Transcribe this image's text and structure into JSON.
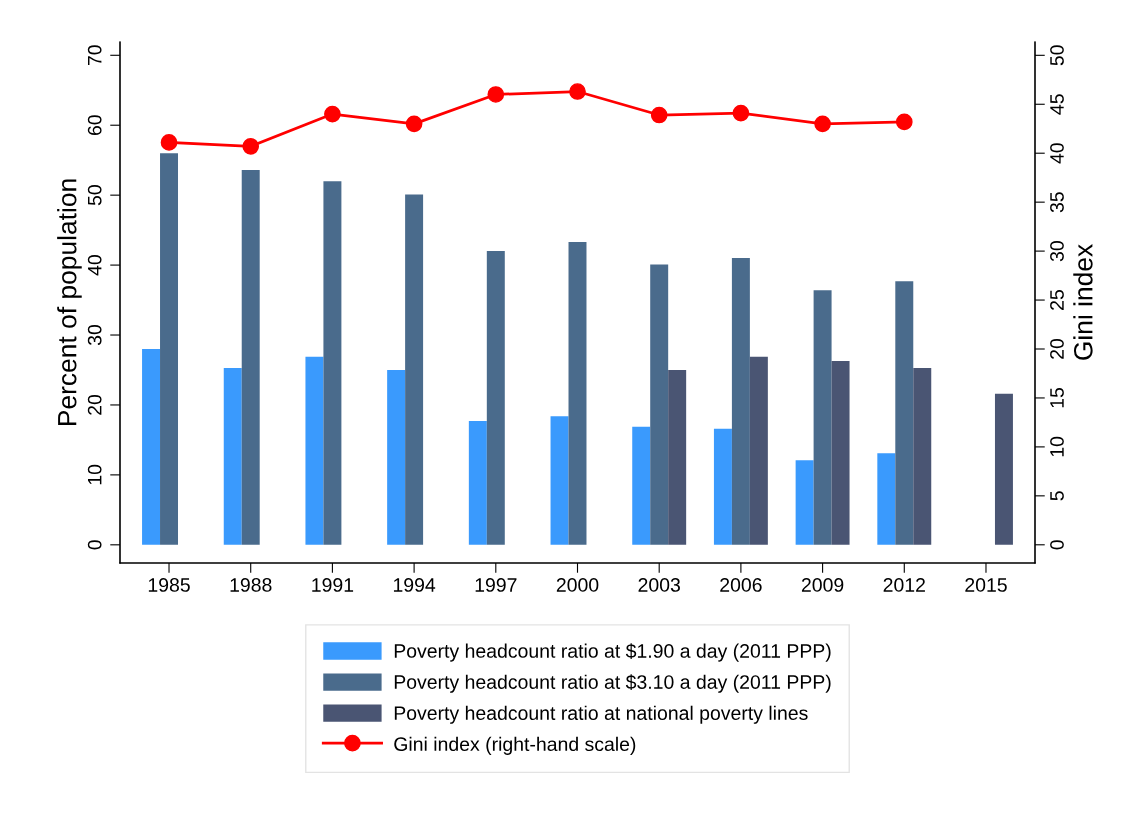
{
  "chart_data": {
    "type": "bar",
    "ylabel": "Percent of population",
    "y2label": "Gini index",
    "categories": [
      "1985",
      "1988",
      "1991",
      "1994",
      "1997",
      "2000",
      "2003",
      "2006",
      "2009",
      "2012",
      "2015"
    ],
    "series": [
      {
        "name": "Poverty headcount ratio at $1.90 a day (2011 PPP)",
        "color": "#3a9afd",
        "values": [
          28.0,
          25.3,
          26.9,
          25.0,
          17.7,
          18.4,
          16.9,
          16.6,
          12.1,
          13.1,
          null
        ]
      },
      {
        "name": "Poverty headcount ratio at $3.10 a day (2011 PPP)",
        "color": "#4a6b8c",
        "values": [
          56.0,
          53.6,
          52.0,
          50.1,
          42.0,
          43.3,
          40.1,
          41.0,
          36.4,
          37.7,
          null
        ]
      },
      {
        "name": "Poverty headcount ratio at national poverty lines",
        "color": "#4a5573",
        "values": [
          null,
          null,
          null,
          null,
          null,
          null,
          25.0,
          26.9,
          26.3,
          25.3,
          21.6
        ]
      },
      {
        "name": "Gini index (right-hand scale)",
        "color": "#ff0000",
        "type": "line",
        "axis": "y2",
        "marker": "circle",
        "values": [
          41.1,
          40.7,
          44.0,
          43.0,
          46.0,
          46.3,
          43.9,
          44.1,
          43.0,
          43.2,
          null
        ]
      }
    ],
    "ylim": [
      -2.6,
      71.9
    ],
    "yticks": [
      0,
      10,
      20,
      30,
      40,
      50,
      60,
      70
    ],
    "y2lim": [
      -1.86,
      51.36
    ],
    "y2ticks": [
      0,
      5,
      10,
      15,
      20,
      25,
      30,
      35,
      40,
      45,
      50
    ],
    "grid": false,
    "legend": "bottom"
  }
}
